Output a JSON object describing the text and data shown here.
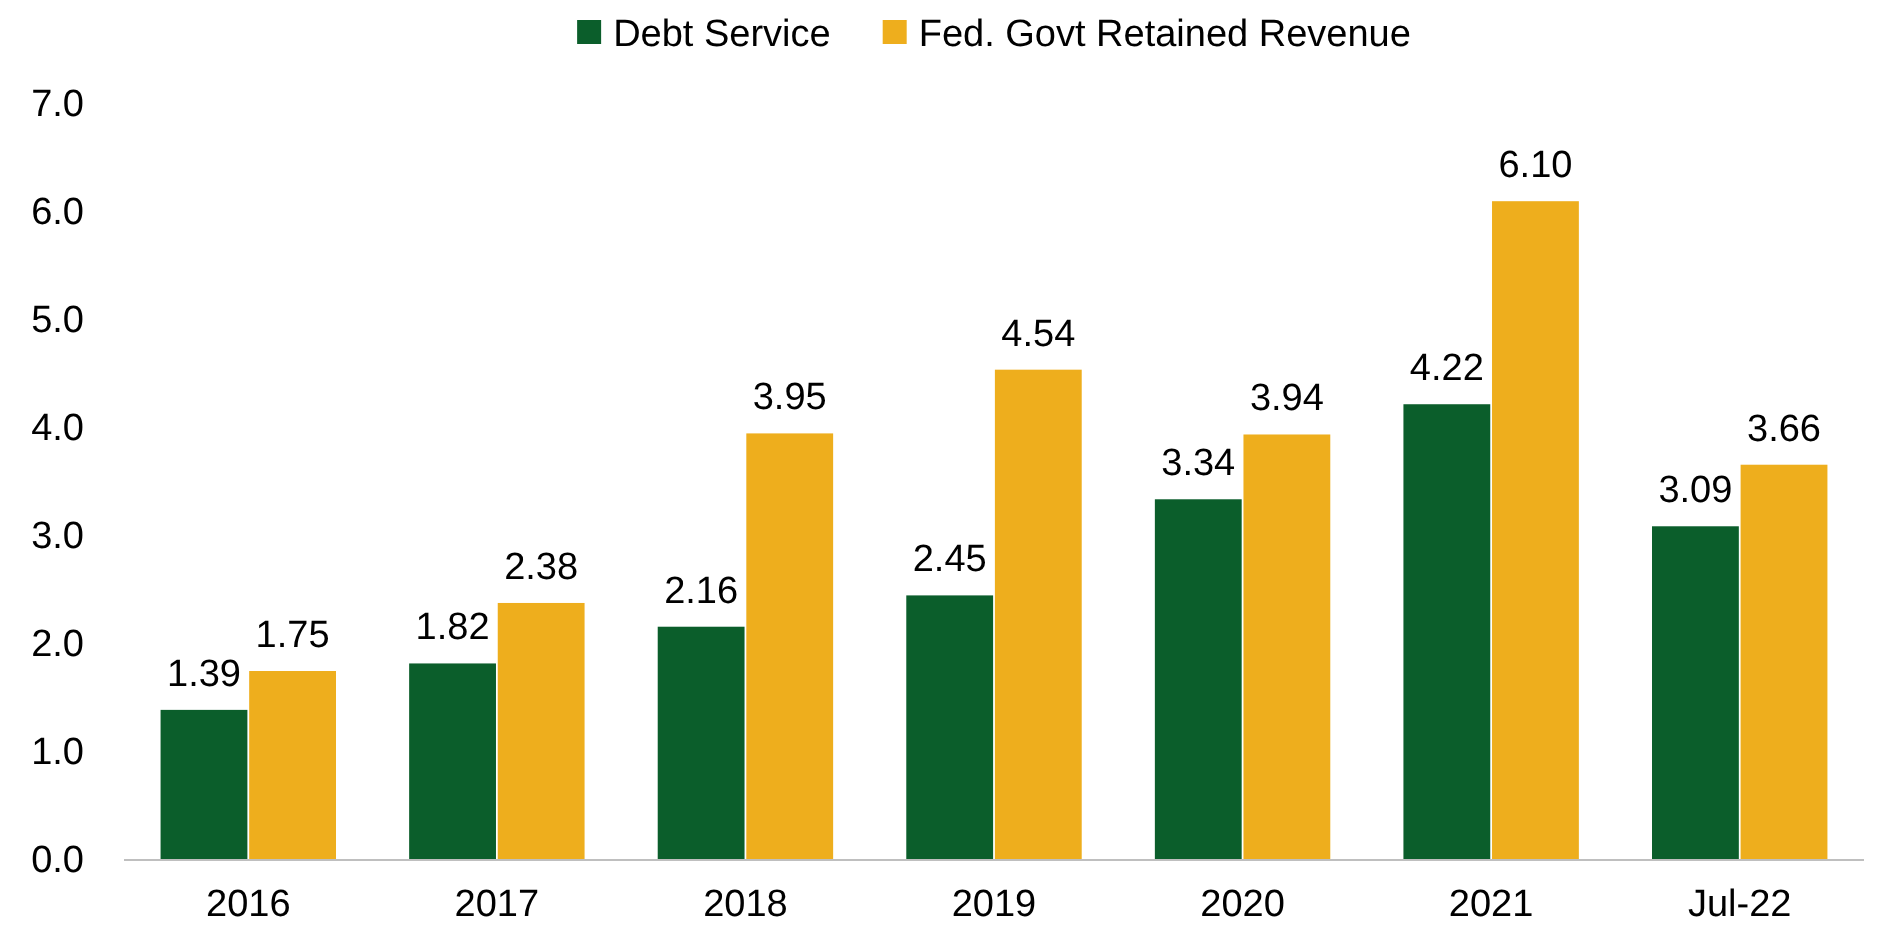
{
  "chart_data": {
    "type": "bar",
    "categories": [
      "2016",
      "2017",
      "2018",
      "2019",
      "2020",
      "2021",
      "Jul-22"
    ],
    "series": [
      {
        "name": "Debt Service",
        "color": "#0b5e2b",
        "values": [
          1.39,
          1.82,
          2.16,
          2.45,
          3.34,
          4.22,
          3.09
        ],
        "value_labels": [
          "1.39",
          "1.82",
          "2.16",
          "2.45",
          "3.34",
          "4.22",
          "3.09"
        ]
      },
      {
        "name": "Fed. Govt Retained Revenue",
        "color": "#eeae1d",
        "values": [
          1.75,
          2.38,
          3.95,
          4.54,
          3.94,
          6.1,
          3.66
        ],
        "value_labels": [
          "1.75",
          "2.38",
          "3.95",
          "4.54",
          "3.94",
          "6.10",
          "3.66"
        ]
      }
    ],
    "ylim": [
      0,
      7
    ],
    "yticks": [
      {
        "value": 0,
        "label": "0.0"
      },
      {
        "value": 1,
        "label": "1.0"
      },
      {
        "value": 2,
        "label": "2.0"
      },
      {
        "value": 3,
        "label": "3.0"
      },
      {
        "value": 4,
        "label": "4.0"
      },
      {
        "value": 5,
        "label": "5.0"
      },
      {
        "value": 6,
        "label": "6.0"
      },
      {
        "value": 7,
        "label": "7.0"
      }
    ],
    "grid": false,
    "legend": "top"
  }
}
